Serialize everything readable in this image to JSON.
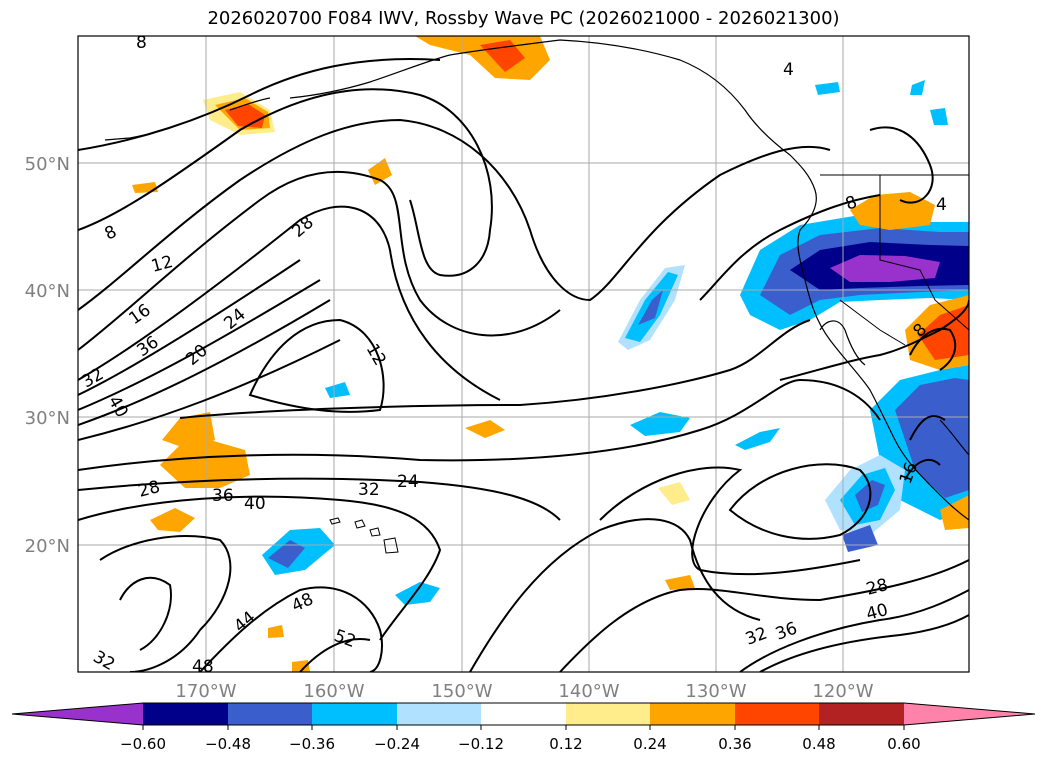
{
  "title": "2026020700 F084 IWV, Rossby Wave PC (2026021000 - 2026021300)",
  "map": {
    "lon_labels": [
      "170°W",
      "160°W",
      "150°W",
      "140°W",
      "130°W",
      "120°W"
    ],
    "lat_labels": [
      "50°N",
      "40°N",
      "30°N",
      "20°N"
    ],
    "tick_label_color": "#808080",
    "grid": true
  },
  "contours": {
    "color": "#000000",
    "labels": [
      "8",
      "8",
      "12",
      "16",
      "36",
      "20",
      "24",
      "28",
      "12",
      "32",
      "40",
      "28",
      "36",
      "40",
      "32",
      "24",
      "44",
      "48",
      "52",
      "32",
      "48",
      "28",
      "40",
      "32",
      "36",
      "16",
      "4",
      "4",
      "8",
      "8"
    ]
  },
  "colorbar": {
    "ticks": [
      "−0.60",
      "−0.48",
      "−0.36",
      "−0.24",
      "−0.12",
      "0.12",
      "0.24",
      "0.36",
      "0.48",
      "0.60"
    ],
    "colors": [
      "#9932cc",
      "#00008b",
      "#3a5fcd",
      "#00bfff",
      "#b0e2ff",
      "#ffffff",
      "#ffec8b",
      "#ffa500",
      "#ff4500",
      "#b22222",
      "#ff82ab"
    ]
  }
}
